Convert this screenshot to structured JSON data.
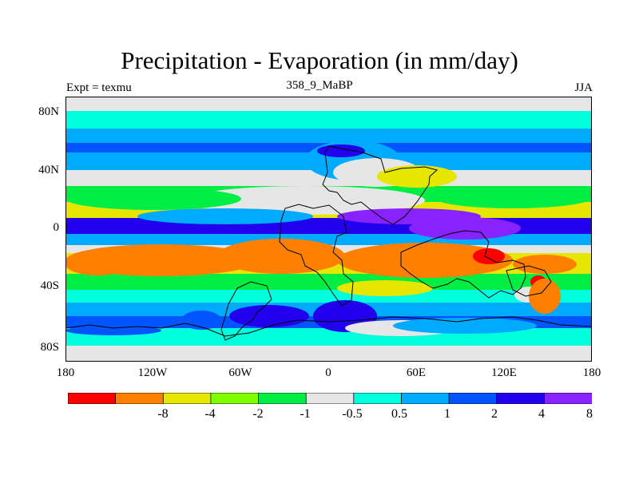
{
  "header": {
    "title": "Precipitation - Evaporation (in mm/day)",
    "left_label": "Expt = texmu",
    "center_label": "358_9_MaBP",
    "right_label": "JJA"
  },
  "axes": {
    "y_ticks": [
      "80N",
      "40N",
      "0",
      "40S",
      "80S"
    ],
    "x_ticks": [
      "180",
      "120W",
      "60W",
      "0",
      "60E",
      "120E",
      "180"
    ]
  },
  "colorbar": {
    "colors": [
      "#ff0000",
      "#ff8000",
      "#e6e600",
      "#80ff00",
      "#00ee44",
      "#e6e6e6",
      "#00ffdd",
      "#00aaff",
      "#0055ff",
      "#2200ee",
      "#8822ff"
    ],
    "labels": [
      "-8",
      "-4",
      "-2",
      "-1",
      "-0.5",
      "0.5",
      "1",
      "2",
      "4",
      "8"
    ]
  },
  "map_colors": {
    "red": "#ff0000",
    "orange": "#ff8000",
    "yellow": "#e6e600",
    "lime": "#80ff00",
    "green": "#00ee44",
    "gray": "#e6e6e6",
    "cyan": "#00ffdd",
    "sky": "#00aaff",
    "blue": "#0055ff",
    "navy": "#2200ee",
    "violet": "#8822ff"
  }
}
